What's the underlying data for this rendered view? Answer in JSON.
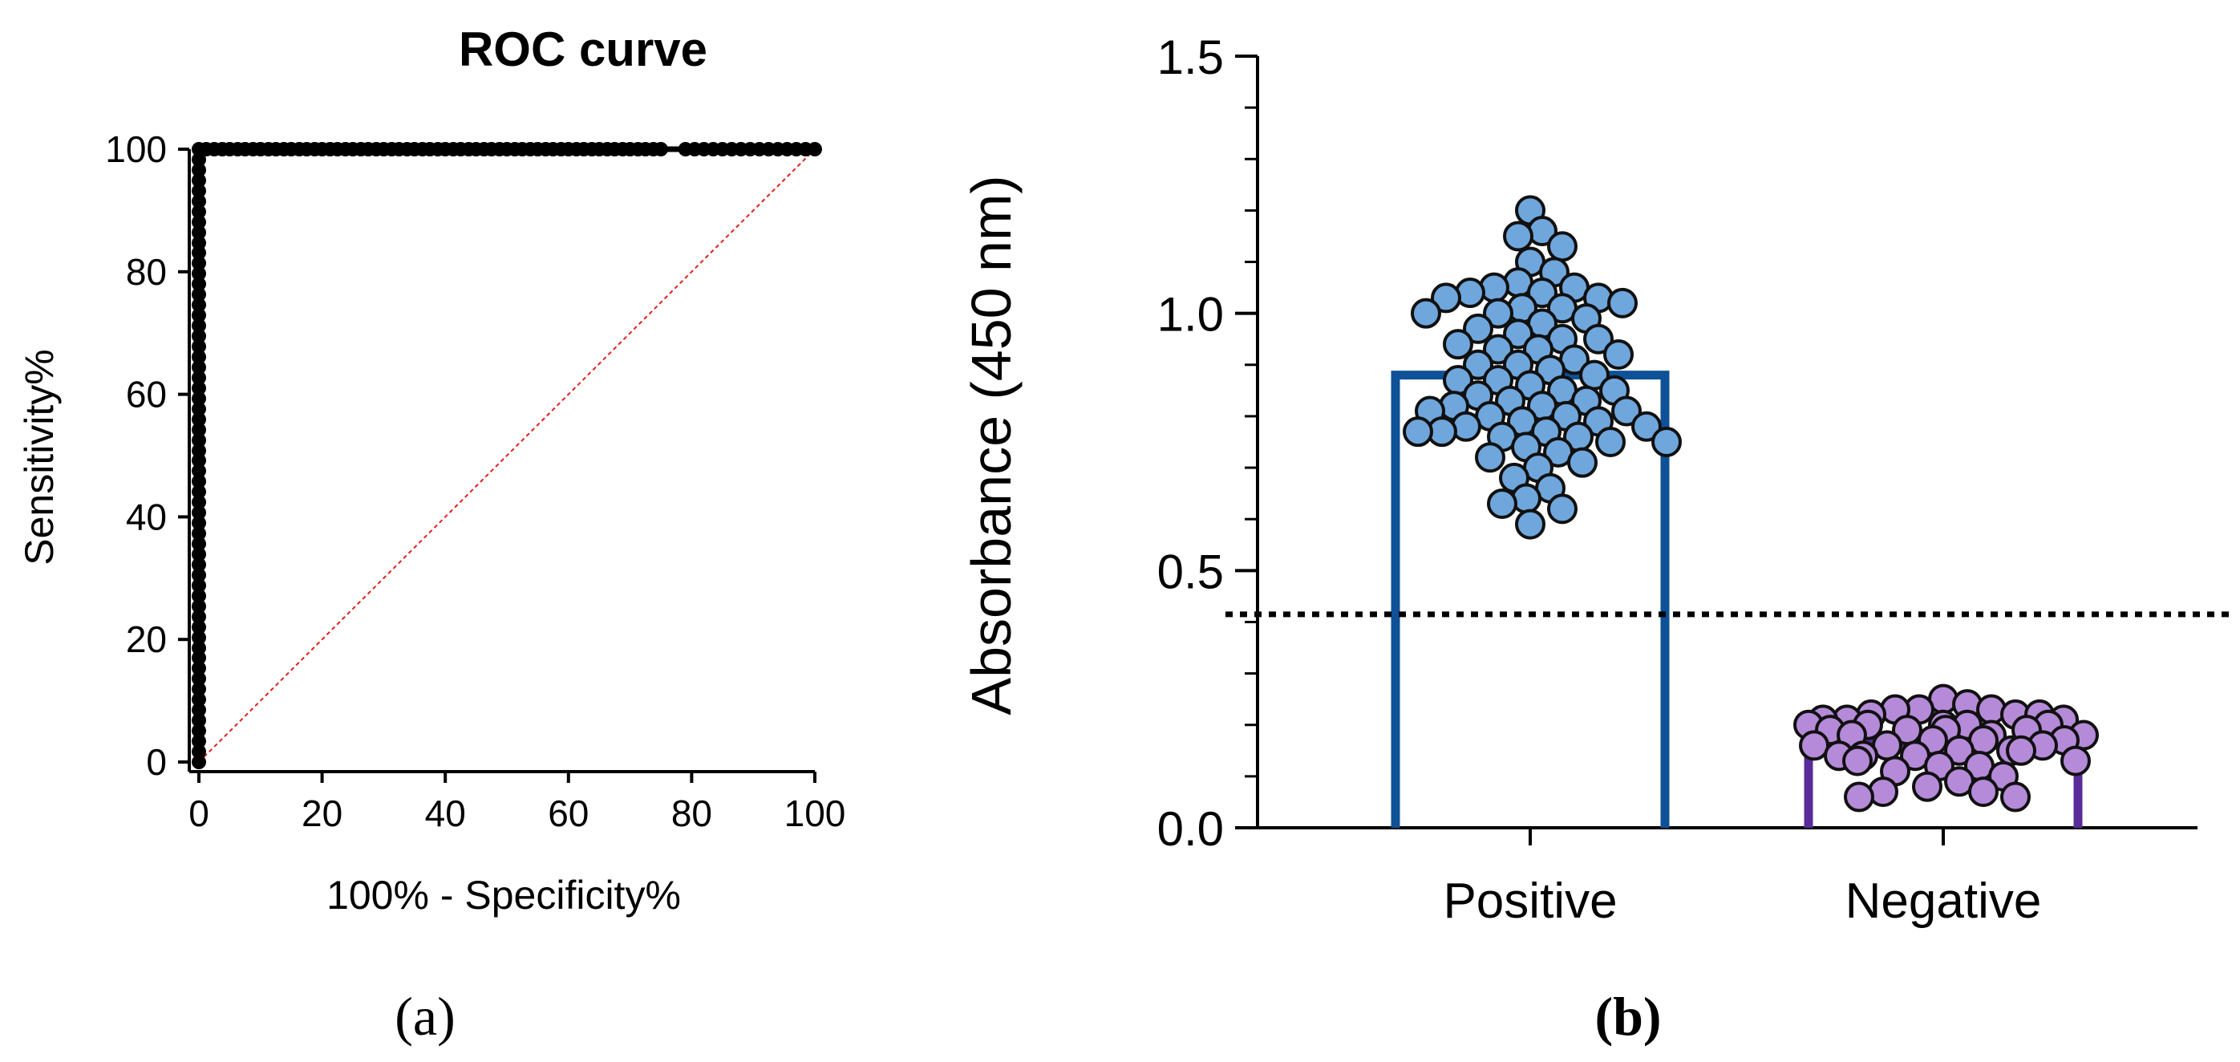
{
  "chart_data": [
    {
      "type": "line",
      "title": "ROC curve",
      "xlabel": "100% - Specificity%",
      "ylabel": "Sensitivity%",
      "xlim": [
        0,
        100
      ],
      "ylim": [
        0,
        100
      ],
      "xticks": [
        0,
        20,
        40,
        60,
        80,
        100
      ],
      "yticks": [
        0,
        20,
        40,
        60,
        80,
        100
      ],
      "panel_label": "(a)",
      "colors": {
        "curve": "#000000",
        "reference": "#e0201b"
      },
      "series": [
        {
          "role": "roc",
          "x": [
            0,
            0,
            0,
            0,
            0,
            0,
            0,
            0,
            0,
            0,
            0,
            0,
            0,
            0,
            0,
            0,
            0,
            0,
            0,
            0,
            0,
            0,
            0,
            0,
            0,
            0,
            0,
            0,
            0,
            0,
            0,
            0,
            0,
            0,
            0,
            0,
            0,
            0,
            0,
            0,
            0,
            0,
            0,
            0,
            0,
            0,
            0,
            0,
            0,
            0,
            0,
            0,
            0,
            0,
            0,
            0,
            0,
            0,
            0,
            0,
            1.2,
            2.5,
            3.8,
            5,
            6.3,
            7.5,
            8.8,
            10,
            11.3,
            12.5,
            13.8,
            15,
            16.3,
            17.5,
            18.8,
            20,
            21.3,
            22.5,
            23.8,
            25,
            26.3,
            27.5,
            28.8,
            30,
            31.3,
            32.5,
            33.8,
            35,
            36.3,
            37.5,
            38.8,
            40,
            41.3,
            42.5,
            43.8,
            45,
            46.3,
            47.5,
            48.8,
            50,
            51.3,
            52.5,
            53.8,
            55,
            56.3,
            57.5,
            58.8,
            60,
            61.3,
            62.5,
            63.8,
            65,
            66.3,
            67.5,
            68.8,
            70,
            71.3,
            72.5,
            73.8,
            75,
            79,
            80.5,
            82,
            83.5,
            85,
            86.5,
            88,
            89.5,
            91,
            92.5,
            94,
            95.5,
            97,
            98.5,
            100
          ],
          "y": [
            0,
            1.7,
            3.4,
            5.1,
            6.8,
            8.5,
            10.2,
            11.9,
            13.6,
            15.3,
            17,
            18.6,
            20.3,
            22,
            23.7,
            25.4,
            27.1,
            28.8,
            30.5,
            32.2,
            33.9,
            35.6,
            37.3,
            39,
            40.7,
            42.4,
            44.1,
            45.8,
            47.5,
            49.2,
            50.8,
            52.5,
            54.2,
            55.9,
            57.6,
            59.3,
            61,
            62.7,
            64.4,
            66.1,
            67.8,
            69.5,
            71.2,
            72.9,
            74.6,
            76.3,
            78,
            79.7,
            81.4,
            83.1,
            84.7,
            86.4,
            88.1,
            89.8,
            91.5,
            93.2,
            94.9,
            96.6,
            98.3,
            100,
            100,
            100,
            100,
            100,
            100,
            100,
            100,
            100,
            100,
            100,
            100,
            100,
            100,
            100,
            100,
            100,
            100,
            100,
            100,
            100,
            100,
            100,
            100,
            100,
            100,
            100,
            100,
            100,
            100,
            100,
            100,
            100,
            100,
            100,
            100,
            100,
            100,
            100,
            100,
            100,
            100,
            100,
            100,
            100,
            100,
            100,
            100,
            100,
            100,
            100,
            100,
            100,
            100,
            100,
            100,
            100,
            100,
            100,
            100,
            100,
            100,
            100,
            100,
            100,
            100,
            100,
            100,
            100,
            100,
            100,
            100,
            100,
            100,
            100,
            100
          ]
        },
        {
          "role": "reference",
          "x": [
            0,
            100
          ],
          "y": [
            0,
            100
          ]
        }
      ]
    },
    {
      "type": "bar",
      "categories": [
        "Positive",
        "Negative"
      ],
      "ylabel": "Absorbance (450 nm)",
      "ylim": [
        0,
        1.5
      ],
      "yticks": [
        "0.0",
        "0.5",
        "1.0",
        "1.5"
      ],
      "ytick_values": [
        0,
        0.5,
        1.0,
        1.5
      ],
      "panel_label": "(b)",
      "cutoff": 0.415,
      "colors": {
        "positive_bar": "#0e5196",
        "positive_points": "#6fa6dc",
        "negative_bar": "#5a2c9a",
        "negative_points": "#b58ad8",
        "cutoff_line": "#000000"
      },
      "values": [
        0.88,
        0.165
      ],
      "points": {
        "Positive": [
          1.2,
          1.16,
          1.15,
          1.13,
          1.1,
          1.08,
          1.06,
          1.05,
          1.05,
          1.04,
          1.04,
          1.03,
          1.03,
          1.02,
          1.01,
          1.01,
          1.0,
          1.0,
          0.99,
          0.98,
          0.97,
          0.96,
          0.95,
          0.95,
          0.94,
          0.93,
          0.93,
          0.92,
          0.91,
          0.9,
          0.9,
          0.89,
          0.88,
          0.87,
          0.87,
          0.86,
          0.85,
          0.85,
          0.84,
          0.83,
          0.83,
          0.82,
          0.82,
          0.81,
          0.81,
          0.8,
          0.8,
          0.79,
          0.79,
          0.78,
          0.78,
          0.77,
          0.77,
          0.77,
          0.76,
          0.76,
          0.75,
          0.75,
          0.74,
          0.73,
          0.72,
          0.71,
          0.7,
          0.68,
          0.66,
          0.64,
          0.63,
          0.62,
          0.59
        ],
        "Negative": [
          0.25,
          0.24,
          0.23,
          0.23,
          0.23,
          0.22,
          0.22,
          0.22,
          0.21,
          0.21,
          0.21,
          0.2,
          0.2,
          0.2,
          0.2,
          0.2,
          0.19,
          0.19,
          0.19,
          0.19,
          0.18,
          0.18,
          0.18,
          0.17,
          0.17,
          0.17,
          0.16,
          0.16,
          0.16,
          0.15,
          0.15,
          0.15,
          0.14,
          0.14,
          0.14,
          0.13,
          0.13,
          0.12,
          0.12,
          0.11,
          0.1,
          0.09,
          0.08,
          0.07,
          0.07,
          0.06,
          0.06
        ]
      }
    }
  ]
}
